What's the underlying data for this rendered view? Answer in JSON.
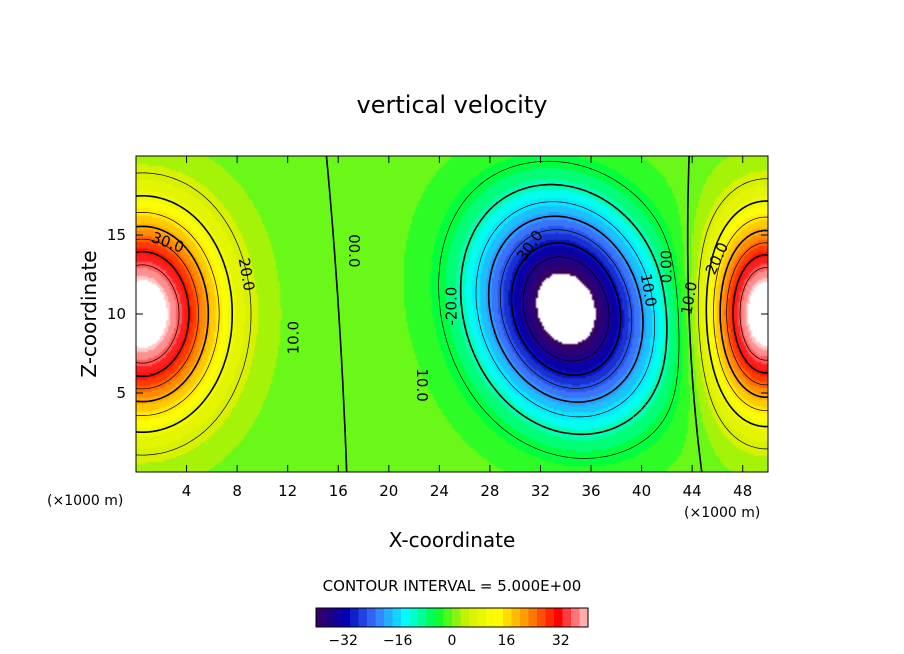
{
  "chart_data": {
    "type": "heatmap",
    "title": "vertical velocity",
    "xlabel": "X-coordinate",
    "ylabel": "Z-coordinate",
    "x_unit_left": "(×1000 m)",
    "x_unit_right": "(×1000 m)",
    "xlim": [
      0,
      50
    ],
    "ylim": [
      0,
      20
    ],
    "xticks": [
      4,
      8,
      12,
      16,
      20,
      24,
      28,
      32,
      36,
      40,
      44,
      48
    ],
    "yticks": [
      5,
      10,
      15
    ],
    "contour_interval_label": "CONTOUR INTERVAL = 5.000E+00",
    "colorbar": {
      "range": [
        -40,
        40
      ],
      "ticks": [
        -32,
        -16,
        0,
        16,
        32
      ],
      "colors": [
        "#3a0060",
        "#0000b4",
        "#3c78ff",
        "#00ffff",
        "#00ff30",
        "#d4f000",
        "#ffff00",
        "#ff9000",
        "#ff0000",
        "#ffc8c8"
      ]
    },
    "contour_labels": [
      {
        "text": "30.0",
        "x": 2.5,
        "y": 14.5,
        "rotate": 20
      },
      {
        "text": "20.0",
        "x": 8.7,
        "y": 12.5,
        "rotate": 80
      },
      {
        "text": "10.0",
        "x": 12.5,
        "y": 8.5,
        "rotate": -90
      },
      {
        "text": "00.0",
        "x": 17.2,
        "y": 14.0,
        "rotate": 90
      },
      {
        "text": "-20.0",
        "x": 25.0,
        "y": 10.5,
        "rotate": -90
      },
      {
        "text": "10.0",
        "x": 22.6,
        "y": 5.5,
        "rotate": 90
      },
      {
        "text": "30.0",
        "x": 31.2,
        "y": 14.3,
        "rotate": -55
      },
      {
        "text": "10.0",
        "x": 40.5,
        "y": 11.5,
        "rotate": 80
      },
      {
        "text": "0.00",
        "x": 42.0,
        "y": 13.0,
        "rotate": -90
      },
      {
        "text": "10.0",
        "x": 43.8,
        "y": 11.0,
        "rotate": -80
      },
      {
        "text": "20.0",
        "x": 46.0,
        "y": 13.5,
        "rotate": -65
      }
    ],
    "fields": {
      "updraft_left": {
        "center_x": 0.5,
        "center_z": 10.0,
        "peak": 45
      },
      "downdraft": {
        "center_x": 34.0,
        "center_z": 10.5,
        "peak": -45
      },
      "updraft_right": {
        "center_x": 49.8,
        "center_z": 10.0,
        "peak": 45
      }
    }
  }
}
